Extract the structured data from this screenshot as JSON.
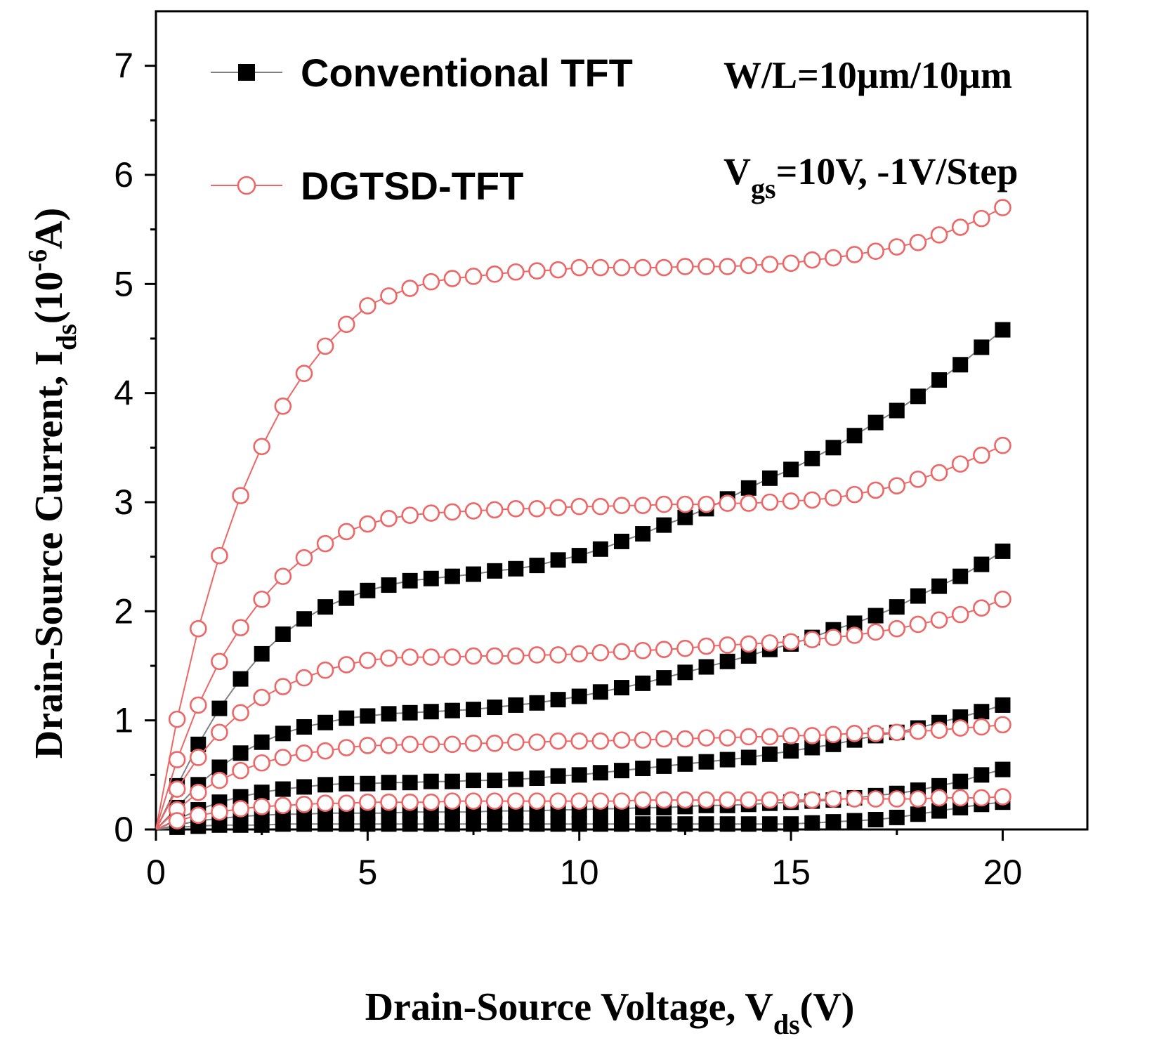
{
  "chart_data": {
    "type": "line",
    "xlabel": {
      "main": "Drain-Source Voltage, V",
      "sub": "ds",
      "unit": "(V)"
    },
    "ylabel": {
      "main": "Drain-Source Current, I",
      "sub": "ds",
      "unit_pre": "(10",
      "unit_sup": "-6",
      "unit_post": "A)"
    },
    "xlim": [
      0,
      22
    ],
    "ylim": [
      0,
      7.5
    ],
    "xticks": [
      0,
      5,
      10,
      15,
      20
    ],
    "yticks": [
      0,
      1,
      2,
      3,
      4,
      5,
      6,
      7
    ],
    "grid": false,
    "legend_position": "top-left",
    "legend": [
      {
        "label": "Conventional TFT",
        "marker": "filled-square",
        "color": "#000000",
        "line_color": "#808080"
      },
      {
        "label": "DGTSD-TFT",
        "marker": "open-circle",
        "color": "#ee6666",
        "line_color": "#ee6666"
      }
    ],
    "annotations": [
      {
        "text": "W/L=10µm/10µm"
      },
      {
        "main": "V",
        "sub": "gs",
        "rest": "=10V, -1V/Step"
      }
    ],
    "x": [
      0,
      0.5,
      1,
      1.5,
      2,
      2.5,
      3,
      3.5,
      4,
      4.5,
      5,
      5.5,
      6,
      6.5,
      7,
      7.5,
      8,
      8.5,
      9,
      9.5,
      10,
      10.5,
      11,
      11.5,
      12,
      12.5,
      13,
      13.5,
      14,
      14.5,
      15,
      15.5,
      16,
      16.5,
      17,
      17.5,
      18,
      18.5,
      19,
      19.5,
      20
    ],
    "series": [
      {
        "group": "Conventional TFT",
        "vgs": "10V",
        "values": [
          0,
          0.4,
          0.78,
          1.11,
          1.38,
          1.61,
          1.79,
          1.93,
          2.04,
          2.12,
          2.19,
          2.24,
          2.28,
          2.3,
          2.32,
          2.34,
          2.37,
          2.39,
          2.42,
          2.47,
          2.51,
          2.57,
          2.64,
          2.71,
          2.79,
          2.86,
          2.94,
          3.03,
          3.13,
          3.22,
          3.3,
          3.4,
          3.5,
          3.61,
          3.73,
          3.84,
          3.97,
          4.12,
          4.26,
          4.42,
          4.58
        ]
      },
      {
        "group": "Conventional TFT",
        "vgs": "9V",
        "values": [
          0,
          0.2,
          0.41,
          0.57,
          0.7,
          0.8,
          0.88,
          0.94,
          0.98,
          1.02,
          1.04,
          1.06,
          1.07,
          1.08,
          1.09,
          1.1,
          1.12,
          1.14,
          1.16,
          1.19,
          1.22,
          1.26,
          1.3,
          1.34,
          1.39,
          1.44,
          1.49,
          1.54,
          1.59,
          1.65,
          1.7,
          1.76,
          1.83,
          1.89,
          1.96,
          2.04,
          2.14,
          2.23,
          2.32,
          2.43,
          2.55
        ]
      },
      {
        "group": "Conventional TFT",
        "vgs": "8V",
        "values": [
          0,
          0.09,
          0.18,
          0.25,
          0.3,
          0.34,
          0.37,
          0.39,
          0.41,
          0.42,
          0.42,
          0.43,
          0.43,
          0.44,
          0.44,
          0.45,
          0.45,
          0.46,
          0.47,
          0.49,
          0.5,
          0.52,
          0.54,
          0.56,
          0.58,
          0.6,
          0.62,
          0.64,
          0.66,
          0.69,
          0.72,
          0.75,
          0.78,
          0.82,
          0.86,
          0.89,
          0.93,
          0.98,
          1.03,
          1.08,
          1.14
        ]
      },
      {
        "group": "Conventional TFT",
        "vgs": "7V",
        "values": [
          0,
          0.04,
          0.08,
          0.1,
          0.12,
          0.13,
          0.14,
          0.14,
          0.15,
          0.15,
          0.15,
          0.15,
          0.16,
          0.16,
          0.16,
          0.16,
          0.17,
          0.17,
          0.17,
          0.18,
          0.18,
          0.19,
          0.19,
          0.2,
          0.2,
          0.21,
          0.22,
          0.22,
          0.23,
          0.24,
          0.25,
          0.26,
          0.27,
          0.29,
          0.31,
          0.33,
          0.36,
          0.4,
          0.44,
          0.5,
          0.55
        ]
      },
      {
        "group": "Conventional TFT",
        "vgs": "6V",
        "values": [
          0,
          0.02,
          0.03,
          0.04,
          0.04,
          0.04,
          0.05,
          0.05,
          0.05,
          0.05,
          0.05,
          0.05,
          0.05,
          0.05,
          0.05,
          0.05,
          0.05,
          0.05,
          0.05,
          0.05,
          0.05,
          0.05,
          0.05,
          0.05,
          0.05,
          0.05,
          0.05,
          0.05,
          0.05,
          0.05,
          0.05,
          0.06,
          0.07,
          0.08,
          0.09,
          0.11,
          0.14,
          0.17,
          0.2,
          0.23,
          0.25
        ]
      },
      {
        "group": "DGTSD-TFT",
        "vgs": "10V",
        "values": [
          0,
          1.01,
          1.84,
          2.51,
          3.06,
          3.51,
          3.88,
          4.18,
          4.43,
          4.63,
          4.8,
          4.89,
          4.96,
          5.02,
          5.05,
          5.07,
          5.09,
          5.11,
          5.12,
          5.13,
          5.15,
          5.15,
          5.15,
          5.15,
          5.15,
          5.16,
          5.16,
          5.16,
          5.17,
          5.18,
          5.19,
          5.22,
          5.24,
          5.27,
          5.3,
          5.34,
          5.38,
          5.45,
          5.52,
          5.6,
          5.7
        ]
      },
      {
        "group": "DGTSD-TFT",
        "vgs": "9V",
        "values": [
          0,
          0.64,
          1.14,
          1.54,
          1.85,
          2.11,
          2.32,
          2.49,
          2.62,
          2.73,
          2.8,
          2.85,
          2.88,
          2.9,
          2.91,
          2.92,
          2.93,
          2.94,
          2.94,
          2.95,
          2.96,
          2.96,
          2.97,
          2.97,
          2.98,
          2.98,
          2.98,
          2.99,
          2.99,
          3.0,
          3.01,
          3.02,
          3.04,
          3.07,
          3.11,
          3.15,
          3.21,
          3.27,
          3.35,
          3.43,
          3.52
        ]
      },
      {
        "group": "DGTSD-TFT",
        "vgs": "8V",
        "values": [
          0,
          0.37,
          0.66,
          0.89,
          1.07,
          1.21,
          1.31,
          1.39,
          1.46,
          1.51,
          1.55,
          1.57,
          1.58,
          1.58,
          1.58,
          1.59,
          1.59,
          1.59,
          1.6,
          1.6,
          1.61,
          1.62,
          1.63,
          1.64,
          1.65,
          1.66,
          1.68,
          1.69,
          1.7,
          1.71,
          1.72,
          1.74,
          1.76,
          1.78,
          1.81,
          1.84,
          1.88,
          1.92,
          1.97,
          2.03,
          2.11
        ]
      },
      {
        "group": "DGTSD-TFT",
        "vgs": "7V",
        "values": [
          0,
          0.18,
          0.34,
          0.45,
          0.54,
          0.61,
          0.66,
          0.7,
          0.72,
          0.75,
          0.77,
          0.77,
          0.78,
          0.78,
          0.78,
          0.79,
          0.79,
          0.8,
          0.8,
          0.81,
          0.81,
          0.81,
          0.82,
          0.82,
          0.83,
          0.83,
          0.84,
          0.84,
          0.85,
          0.85,
          0.86,
          0.86,
          0.87,
          0.88,
          0.88,
          0.89,
          0.9,
          0.91,
          0.93,
          0.94,
          0.96
        ]
      },
      {
        "group": "DGTSD-TFT",
        "vgs": "6V",
        "values": [
          0,
          0.08,
          0.13,
          0.16,
          0.19,
          0.21,
          0.22,
          0.23,
          0.24,
          0.24,
          0.25,
          0.25,
          0.25,
          0.25,
          0.26,
          0.26,
          0.26,
          0.26,
          0.26,
          0.26,
          0.26,
          0.26,
          0.26,
          0.27,
          0.27,
          0.27,
          0.27,
          0.27,
          0.27,
          0.27,
          0.27,
          0.27,
          0.28,
          0.28,
          0.28,
          0.28,
          0.28,
          0.29,
          0.29,
          0.29,
          0.3
        ]
      }
    ]
  }
}
